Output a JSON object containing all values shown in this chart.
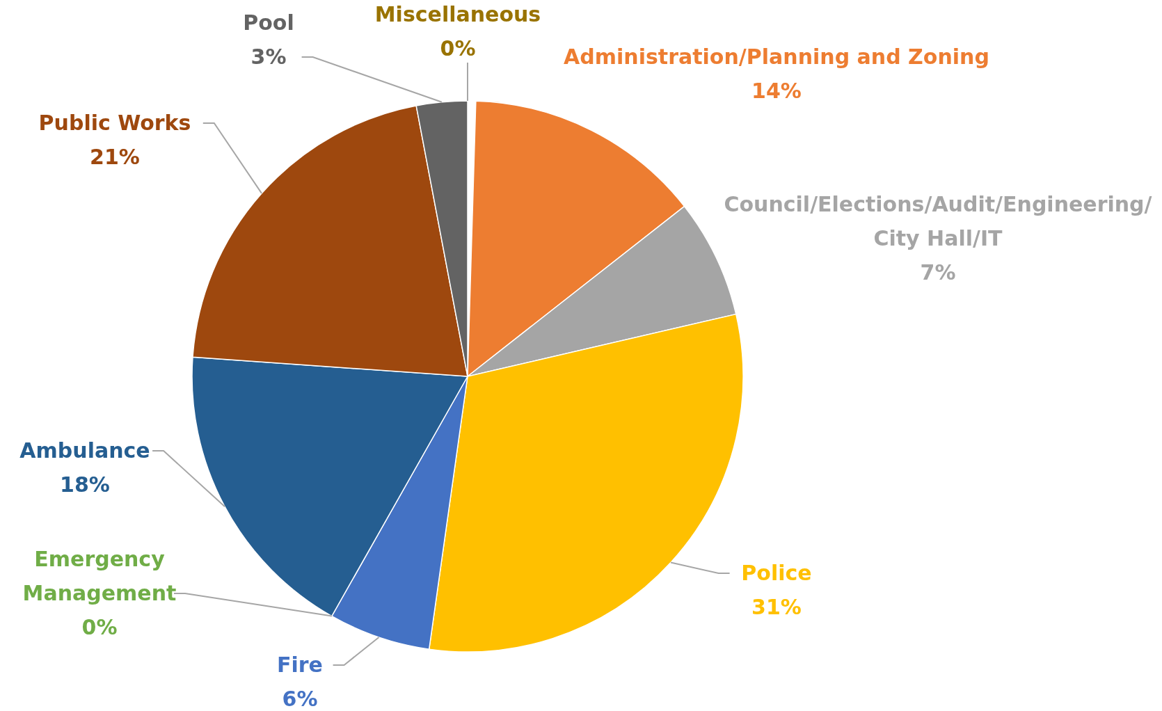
{
  "chart_data": {
    "type": "pie",
    "categories": [
      "Administration/Planning  and Zoning",
      "Council/Elections/Audit/Engineering/City Hall/IT",
      "Police",
      "Fire",
      "Emergency Management",
      "Ambulance",
      "Public Works",
      "Pool",
      "Miscellaneous"
    ],
    "values": [
      14,
      7,
      31,
      6,
      0,
      18,
      21,
      3,
      0
    ],
    "value_labels": [
      "14%",
      "7%",
      "31%",
      "6%",
      "0%",
      "18%",
      "21%",
      "3%",
      "0%"
    ],
    "colors": [
      "#ed7d31",
      "#a5a5a5",
      "#ffc000",
      "#4472c4",
      "#70ad47",
      "#255e91",
      "#9e480e",
      "#636363",
      "#997300"
    ]
  }
}
